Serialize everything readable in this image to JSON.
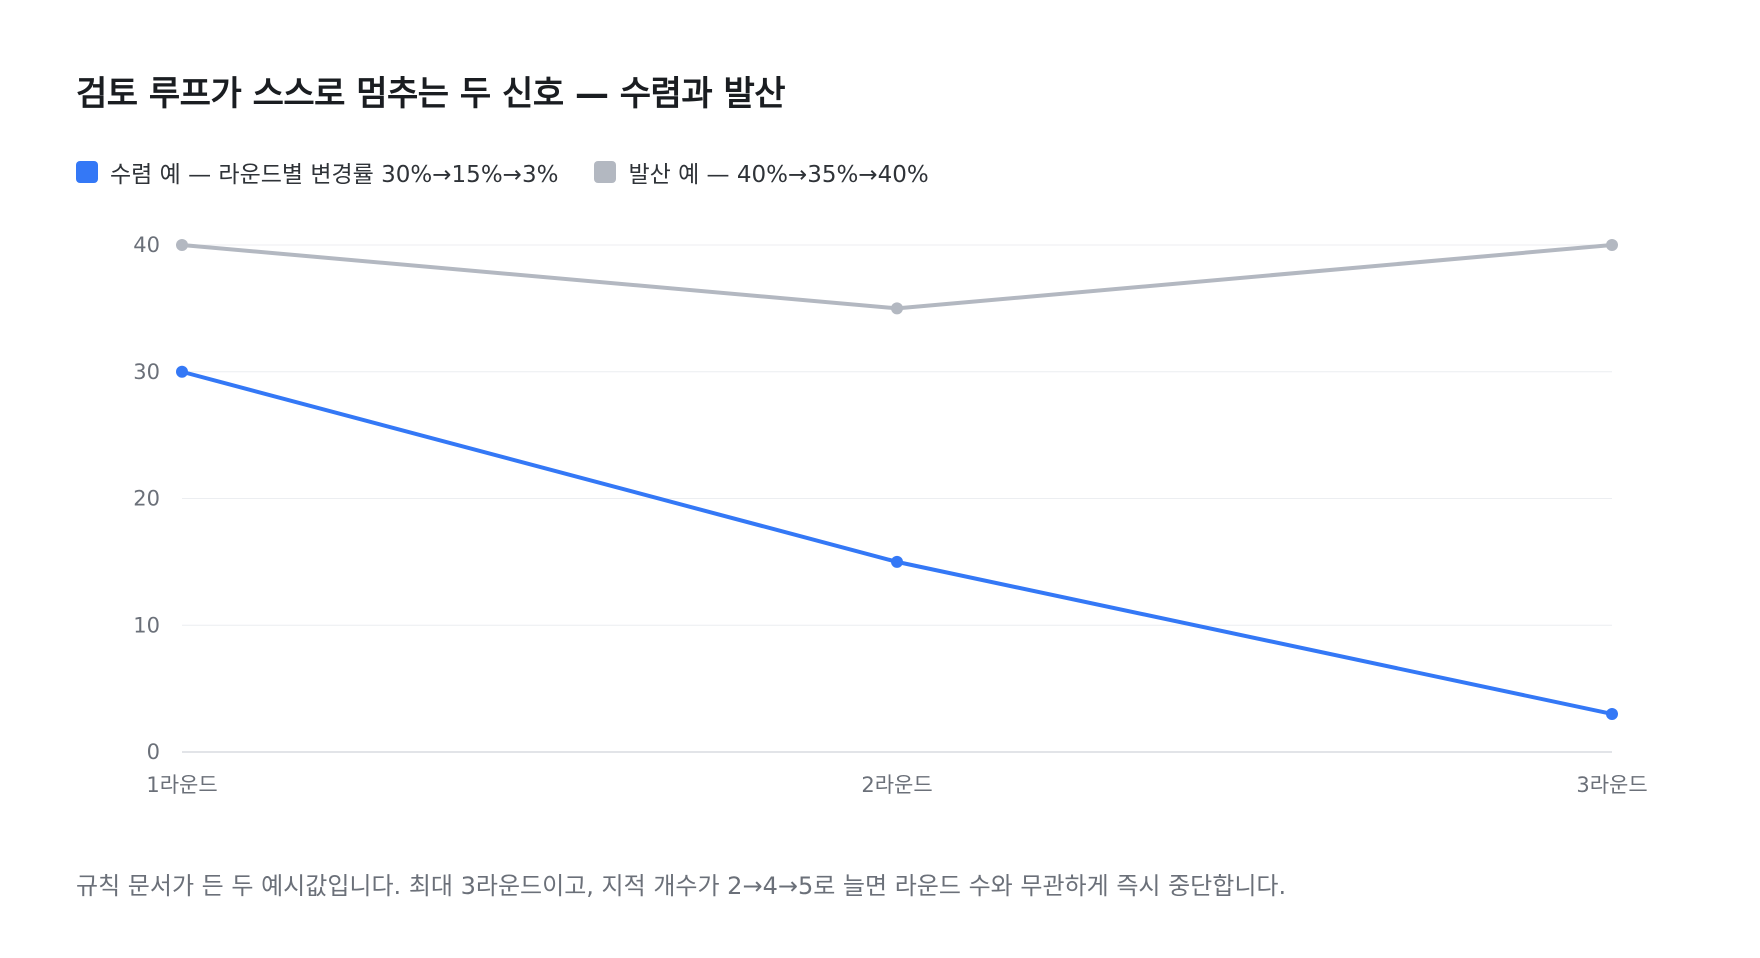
{
  "title": "검토 루프가 스스로 멈추는 두 신호 — 수렴과 발산",
  "note": "규칙 문서가 든 두 예시값입니다. 최대 3라운드이고, 지적 개수가 2→4→5로 늘면 라운드 수와 무관하게 즉시 중단합니다.",
  "chart_data": {
    "type": "line",
    "categories": [
      "1라운드",
      "2라운드",
      "3라운드"
    ],
    "series": [
      {
        "name": "수렴 예 — 라운드별 변경률 30%→15%→3%",
        "values": [
          30,
          15,
          3
        ],
        "color": "#3478f6"
      },
      {
        "name": "발산 예 — 40%→35%→40%",
        "values": [
          40,
          35,
          40
        ],
        "color": "#b3b8c1"
      }
    ],
    "ylim": [
      0,
      40
    ],
    "yticks": [
      0,
      10,
      20,
      30,
      40
    ],
    "grid": true,
    "legend": "top-left"
  }
}
